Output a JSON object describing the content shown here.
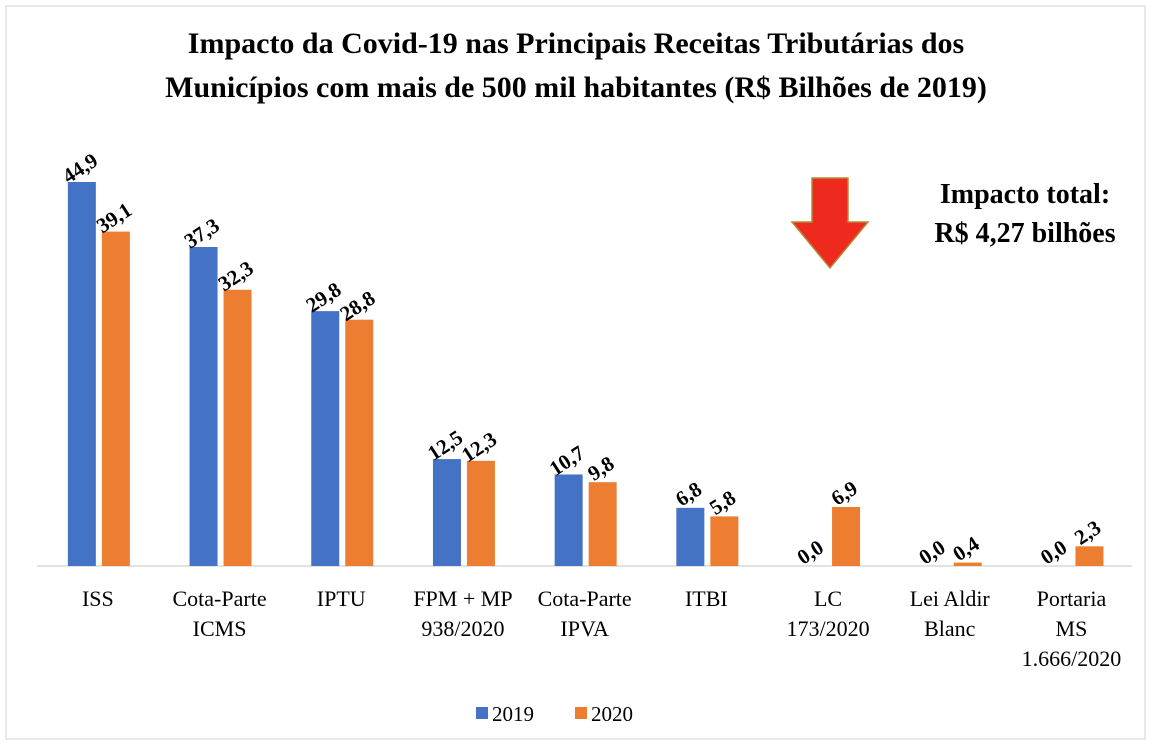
{
  "chart_data": {
    "type": "bar",
    "title": [
      "Impacto da Covid-19 nas Principais Receitas Tributárias dos",
      "Municípios com mais de 500 mil habitantes (R$ Bilhões de 2019)"
    ],
    "categories": [
      [
        "ISS"
      ],
      [
        "Cota-Parte",
        "ICMS"
      ],
      [
        "IPTU"
      ],
      [
        "FPM + MP",
        "938/2020"
      ],
      [
        "Cota-Parte",
        "IPVA"
      ],
      [
        "ITBI"
      ],
      [
        "LC",
        "173/2020"
      ],
      [
        "Lei Aldir",
        "Blanc"
      ],
      [
        "Portaria",
        "MS",
        "1.666/2020"
      ]
    ],
    "series": [
      {
        "name": "2019",
        "color": "#4472c4",
        "values": [
          44.9,
          37.3,
          29.8,
          12.5,
          10.7,
          6.8,
          0.0,
          0.0,
          0.0
        ],
        "value_labels": [
          "44,9",
          "37,3",
          "29,8",
          "12,5",
          "10,7",
          "6,8",
          "0,0",
          "0,0",
          "0,0"
        ]
      },
      {
        "name": "2020",
        "color": "#ed7d31",
        "values": [
          39.1,
          32.3,
          28.8,
          12.3,
          9.8,
          5.8,
          6.9,
          0.4,
          2.3
        ],
        "value_labels": [
          "39,1",
          "32,3",
          "28,8",
          "12,3",
          "9,8",
          "5,8",
          "6,9",
          "0,4",
          "2,3"
        ]
      }
    ],
    "annotation": [
      "Impacto total:",
      "R$ 4,27 bilhões"
    ],
    "legend": "bottom"
  }
}
